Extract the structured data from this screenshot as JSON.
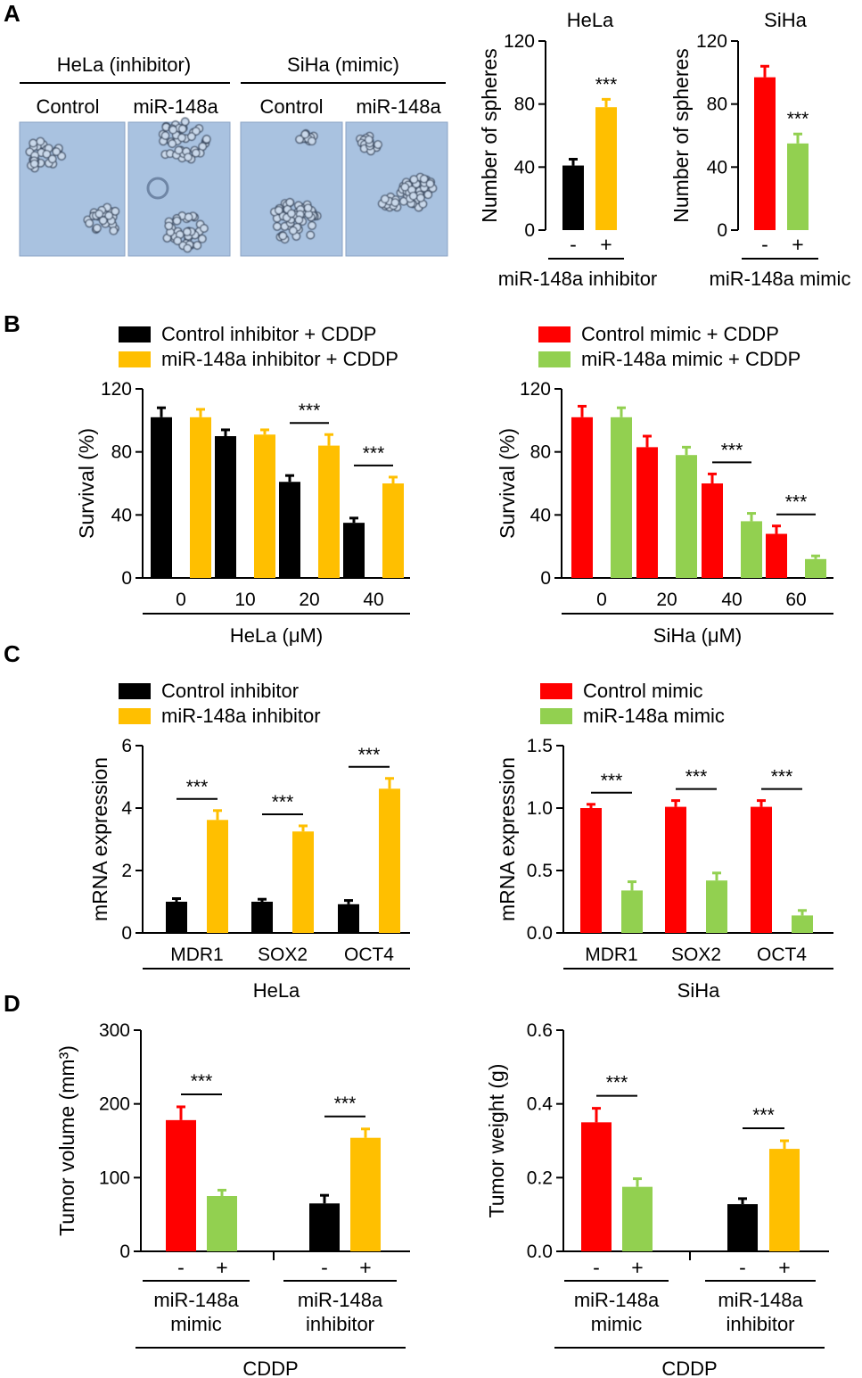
{
  "panels": {
    "a": "A",
    "b": "B",
    "c": "C",
    "d": "D"
  },
  "colors": {
    "black": "#000000",
    "yellow": "#ffbf00",
    "red": "#ff0000",
    "green": "#92d050"
  },
  "micrographs": {
    "group_hela": "HeLa (inhibitor)",
    "group_siha": "SiHa (mimic)",
    "labels": [
      "Control",
      "miR-148a",
      "Control",
      "miR-148a"
    ]
  },
  "chart_data": [
    {
      "id": "A1",
      "type": "bar",
      "title": "HeLa",
      "ylabel": "Number of spheres",
      "ylim": [
        0,
        120
      ],
      "yticks": [
        0,
        40,
        80,
        120
      ],
      "xlabel": "miR-148a inhibitor",
      "categories": [
        "-",
        "+"
      ],
      "bars": [
        {
          "value": 41,
          "err": 4,
          "color": "black"
        },
        {
          "value": 78,
          "err": 5,
          "color": "yellow"
        }
      ],
      "annotations": [
        {
          "text": "***",
          "bar": 1
        }
      ]
    },
    {
      "id": "A2",
      "type": "bar",
      "title": "SiHa",
      "ylabel": "Number of spheres",
      "ylim": [
        0,
        120
      ],
      "yticks": [
        0,
        40,
        80,
        120
      ],
      "xlabel": "miR-148a mimic",
      "categories": [
        "-",
        "+"
      ],
      "bars": [
        {
          "value": 97,
          "err": 7,
          "color": "red"
        },
        {
          "value": 55,
          "err": 6,
          "color": "green"
        }
      ],
      "annotations": [
        {
          "text": "***",
          "bar": 1
        }
      ]
    },
    {
      "id": "B1",
      "type": "bar",
      "ylabel": "Survival (%)",
      "xlabel": "HeLa (μM)",
      "ylim": [
        0,
        120
      ],
      "yticks": [
        0,
        40,
        80,
        120
      ],
      "categories": [
        "0",
        "10",
        "20",
        "40"
      ],
      "legend": [
        "Control inhibitor + CDDP",
        "miR-148a inhibitor + CDDP"
      ],
      "series": [
        {
          "name": "Control inhibitor + CDDP",
          "color": "black",
          "values": [
            102,
            90,
            61,
            35
          ],
          "errors": [
            6,
            4,
            4,
            3
          ]
        },
        {
          "name": "miR-148a inhibitor + CDDP",
          "color": "yellow",
          "values": [
            102,
            91,
            84,
            60
          ],
          "errors": [
            5,
            3,
            7,
            4
          ]
        }
      ],
      "significance": [
        {
          "text": "***",
          "group": 2
        },
        {
          "text": "***",
          "group": 3
        }
      ]
    },
    {
      "id": "B2",
      "type": "bar",
      "ylabel": "Survival (%)",
      "xlabel": "SiHa (μM)",
      "ylim": [
        0,
        120
      ],
      "yticks": [
        0,
        40,
        80,
        120
      ],
      "categories": [
        "0",
        "20",
        "40",
        "60"
      ],
      "legend": [
        "Control mimic + CDDP",
        "miR-148a mimic + CDDP"
      ],
      "series": [
        {
          "name": "Control mimic + CDDP",
          "color": "red",
          "values": [
            102,
            83,
            60,
            28
          ],
          "errors": [
            7,
            7,
            6,
            5
          ]
        },
        {
          "name": "miR-148a mimic + CDDP",
          "color": "green",
          "values": [
            102,
            78,
            36,
            12
          ],
          "errors": [
            6,
            5,
            5,
            2
          ]
        }
      ],
      "significance": [
        {
          "text": "***",
          "group": 2
        },
        {
          "text": "***",
          "group": 3
        }
      ]
    },
    {
      "id": "C1",
      "type": "bar",
      "ylabel": "mRNA expression",
      "xlabel": "HeLa",
      "ylim": [
        0,
        6
      ],
      "yticks": [
        0,
        2,
        4,
        6
      ],
      "categories": [
        "MDR1",
        "SOX2",
        "OCT4"
      ],
      "legend": [
        "Control inhibitor",
        "miR-148a inhibitor"
      ],
      "series": [
        {
          "name": "Control inhibitor",
          "color": "black",
          "values": [
            1.0,
            1.0,
            0.92
          ],
          "errors": [
            0.1,
            0.08,
            0.12
          ]
        },
        {
          "name": "miR-148a inhibitor",
          "color": "yellow",
          "values": [
            3.62,
            3.25,
            4.62
          ],
          "errors": [
            0.3,
            0.18,
            0.33
          ]
        }
      ],
      "significance": [
        {
          "text": "***",
          "group": 0
        },
        {
          "text": "***",
          "group": 1
        },
        {
          "text": "***",
          "group": 2
        }
      ]
    },
    {
      "id": "C2",
      "type": "bar",
      "ylabel": "mRNA expression",
      "xlabel": "SiHa",
      "ylim": [
        0,
        1.5
      ],
      "yticks": [
        "0.0",
        "0.5",
        "1.0",
        "1.5"
      ],
      "categories": [
        "MDR1",
        "SOX2",
        "OCT4"
      ],
      "legend": [
        "Control mimic",
        "miR-148a mimic"
      ],
      "series": [
        {
          "name": "Control mimic",
          "color": "red",
          "values": [
            1.0,
            1.01,
            1.01
          ],
          "errors": [
            0.03,
            0.05,
            0.05
          ]
        },
        {
          "name": "miR-148a mimic",
          "color": "green",
          "values": [
            0.34,
            0.42,
            0.14
          ],
          "errors": [
            0.07,
            0.06,
            0.04
          ]
        }
      ],
      "significance": [
        {
          "text": "***",
          "group": 0
        },
        {
          "text": "***",
          "group": 1
        },
        {
          "text": "***",
          "group": 2
        }
      ]
    },
    {
      "id": "D1",
      "type": "bar",
      "ylabel": "Tumor volume (mm³)",
      "ylim": [
        0,
        300
      ],
      "yticks": [
        0,
        100,
        200,
        300
      ],
      "xlabel": "CDDP",
      "groups": [
        {
          "label": [
            "miR-148a",
            "mimic"
          ],
          "categories": [
            "-",
            "+"
          ],
          "bars": [
            {
              "value": 178,
              "err": 18,
              "color": "red"
            },
            {
              "value": 75,
              "err": 8,
              "color": "green"
            }
          ]
        },
        {
          "label": [
            "miR-148a",
            "inhibitor"
          ],
          "categories": [
            "-",
            "+"
          ],
          "bars": [
            {
              "value": 65,
              "err": 11,
              "color": "black"
            },
            {
              "value": 154,
              "err": 12,
              "color": "yellow"
            }
          ]
        }
      ],
      "significance": [
        {
          "text": "***",
          "group": 0
        },
        {
          "text": "***",
          "group": 1
        }
      ]
    },
    {
      "id": "D2",
      "type": "bar",
      "ylabel": "Tumor weight (g)",
      "ylim": [
        0,
        0.6
      ],
      "yticks": [
        "0.0",
        "0.2",
        "0.4",
        "0.6"
      ],
      "xlabel": "CDDP",
      "groups": [
        {
          "label": [
            "miR-148a",
            "mimic"
          ],
          "categories": [
            "-",
            "+"
          ],
          "bars": [
            {
              "value": 0.35,
              "err": 0.038,
              "color": "red"
            },
            {
              "value": 0.175,
              "err": 0.022,
              "color": "green"
            }
          ]
        },
        {
          "label": [
            "miR-148a",
            "inhibitor"
          ],
          "categories": [
            "-",
            "+"
          ],
          "bars": [
            {
              "value": 0.128,
              "err": 0.015,
              "color": "black"
            },
            {
              "value": 0.278,
              "err": 0.022,
              "color": "yellow"
            }
          ]
        }
      ],
      "significance": [
        {
          "text": "***",
          "group": 0
        },
        {
          "text": "***",
          "group": 1
        }
      ]
    }
  ]
}
